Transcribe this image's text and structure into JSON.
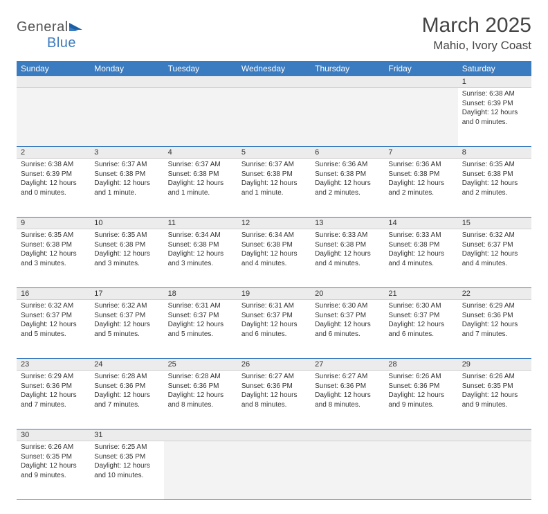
{
  "brand": {
    "part1": "General",
    "part2": "Blue"
  },
  "title": "March 2025",
  "location": "Mahio, Ivory Coast",
  "colors": {
    "header_bg": "#3b7bbf",
    "header_text": "#ffffff",
    "daynum_bg": "#ececec",
    "row_divider": "#3b7bbf",
    "text": "#333333",
    "brand_gray": "#555555",
    "brand_blue": "#3b7bbf"
  },
  "weekdays": [
    "Sunday",
    "Monday",
    "Tuesday",
    "Wednesday",
    "Thursday",
    "Friday",
    "Saturday"
  ],
  "weeks": [
    [
      null,
      null,
      null,
      null,
      null,
      null,
      {
        "n": "1",
        "sr": "Sunrise: 6:38 AM",
        "ss": "Sunset: 6:39 PM",
        "d1": "Daylight: 12 hours",
        "d2": "and 0 minutes."
      }
    ],
    [
      {
        "n": "2",
        "sr": "Sunrise: 6:38 AM",
        "ss": "Sunset: 6:39 PM",
        "d1": "Daylight: 12 hours",
        "d2": "and 0 minutes."
      },
      {
        "n": "3",
        "sr": "Sunrise: 6:37 AM",
        "ss": "Sunset: 6:38 PM",
        "d1": "Daylight: 12 hours",
        "d2": "and 1 minute."
      },
      {
        "n": "4",
        "sr": "Sunrise: 6:37 AM",
        "ss": "Sunset: 6:38 PM",
        "d1": "Daylight: 12 hours",
        "d2": "and 1 minute."
      },
      {
        "n": "5",
        "sr": "Sunrise: 6:37 AM",
        "ss": "Sunset: 6:38 PM",
        "d1": "Daylight: 12 hours",
        "d2": "and 1 minute."
      },
      {
        "n": "6",
        "sr": "Sunrise: 6:36 AM",
        "ss": "Sunset: 6:38 PM",
        "d1": "Daylight: 12 hours",
        "d2": "and 2 minutes."
      },
      {
        "n": "7",
        "sr": "Sunrise: 6:36 AM",
        "ss": "Sunset: 6:38 PM",
        "d1": "Daylight: 12 hours",
        "d2": "and 2 minutes."
      },
      {
        "n": "8",
        "sr": "Sunrise: 6:35 AM",
        "ss": "Sunset: 6:38 PM",
        "d1": "Daylight: 12 hours",
        "d2": "and 2 minutes."
      }
    ],
    [
      {
        "n": "9",
        "sr": "Sunrise: 6:35 AM",
        "ss": "Sunset: 6:38 PM",
        "d1": "Daylight: 12 hours",
        "d2": "and 3 minutes."
      },
      {
        "n": "10",
        "sr": "Sunrise: 6:35 AM",
        "ss": "Sunset: 6:38 PM",
        "d1": "Daylight: 12 hours",
        "d2": "and 3 minutes."
      },
      {
        "n": "11",
        "sr": "Sunrise: 6:34 AM",
        "ss": "Sunset: 6:38 PM",
        "d1": "Daylight: 12 hours",
        "d2": "and 3 minutes."
      },
      {
        "n": "12",
        "sr": "Sunrise: 6:34 AM",
        "ss": "Sunset: 6:38 PM",
        "d1": "Daylight: 12 hours",
        "d2": "and 4 minutes."
      },
      {
        "n": "13",
        "sr": "Sunrise: 6:33 AM",
        "ss": "Sunset: 6:38 PM",
        "d1": "Daylight: 12 hours",
        "d2": "and 4 minutes."
      },
      {
        "n": "14",
        "sr": "Sunrise: 6:33 AM",
        "ss": "Sunset: 6:38 PM",
        "d1": "Daylight: 12 hours",
        "d2": "and 4 minutes."
      },
      {
        "n": "15",
        "sr": "Sunrise: 6:32 AM",
        "ss": "Sunset: 6:37 PM",
        "d1": "Daylight: 12 hours",
        "d2": "and 4 minutes."
      }
    ],
    [
      {
        "n": "16",
        "sr": "Sunrise: 6:32 AM",
        "ss": "Sunset: 6:37 PM",
        "d1": "Daylight: 12 hours",
        "d2": "and 5 minutes."
      },
      {
        "n": "17",
        "sr": "Sunrise: 6:32 AM",
        "ss": "Sunset: 6:37 PM",
        "d1": "Daylight: 12 hours",
        "d2": "and 5 minutes."
      },
      {
        "n": "18",
        "sr": "Sunrise: 6:31 AM",
        "ss": "Sunset: 6:37 PM",
        "d1": "Daylight: 12 hours",
        "d2": "and 5 minutes."
      },
      {
        "n": "19",
        "sr": "Sunrise: 6:31 AM",
        "ss": "Sunset: 6:37 PM",
        "d1": "Daylight: 12 hours",
        "d2": "and 6 minutes."
      },
      {
        "n": "20",
        "sr": "Sunrise: 6:30 AM",
        "ss": "Sunset: 6:37 PM",
        "d1": "Daylight: 12 hours",
        "d2": "and 6 minutes."
      },
      {
        "n": "21",
        "sr": "Sunrise: 6:30 AM",
        "ss": "Sunset: 6:37 PM",
        "d1": "Daylight: 12 hours",
        "d2": "and 6 minutes."
      },
      {
        "n": "22",
        "sr": "Sunrise: 6:29 AM",
        "ss": "Sunset: 6:36 PM",
        "d1": "Daylight: 12 hours",
        "d2": "and 7 minutes."
      }
    ],
    [
      {
        "n": "23",
        "sr": "Sunrise: 6:29 AM",
        "ss": "Sunset: 6:36 PM",
        "d1": "Daylight: 12 hours",
        "d2": "and 7 minutes."
      },
      {
        "n": "24",
        "sr": "Sunrise: 6:28 AM",
        "ss": "Sunset: 6:36 PM",
        "d1": "Daylight: 12 hours",
        "d2": "and 7 minutes."
      },
      {
        "n": "25",
        "sr": "Sunrise: 6:28 AM",
        "ss": "Sunset: 6:36 PM",
        "d1": "Daylight: 12 hours",
        "d2": "and 8 minutes."
      },
      {
        "n": "26",
        "sr": "Sunrise: 6:27 AM",
        "ss": "Sunset: 6:36 PM",
        "d1": "Daylight: 12 hours",
        "d2": "and 8 minutes."
      },
      {
        "n": "27",
        "sr": "Sunrise: 6:27 AM",
        "ss": "Sunset: 6:36 PM",
        "d1": "Daylight: 12 hours",
        "d2": "and 8 minutes."
      },
      {
        "n": "28",
        "sr": "Sunrise: 6:26 AM",
        "ss": "Sunset: 6:36 PM",
        "d1": "Daylight: 12 hours",
        "d2": "and 9 minutes."
      },
      {
        "n": "29",
        "sr": "Sunrise: 6:26 AM",
        "ss": "Sunset: 6:35 PM",
        "d1": "Daylight: 12 hours",
        "d2": "and 9 minutes."
      }
    ],
    [
      {
        "n": "30",
        "sr": "Sunrise: 6:26 AM",
        "ss": "Sunset: 6:35 PM",
        "d1": "Daylight: 12 hours",
        "d2": "and 9 minutes."
      },
      {
        "n": "31",
        "sr": "Sunrise: 6:25 AM",
        "ss": "Sunset: 6:35 PM",
        "d1": "Daylight: 12 hours",
        "d2": "and 10 minutes."
      },
      null,
      null,
      null,
      null,
      null
    ]
  ]
}
